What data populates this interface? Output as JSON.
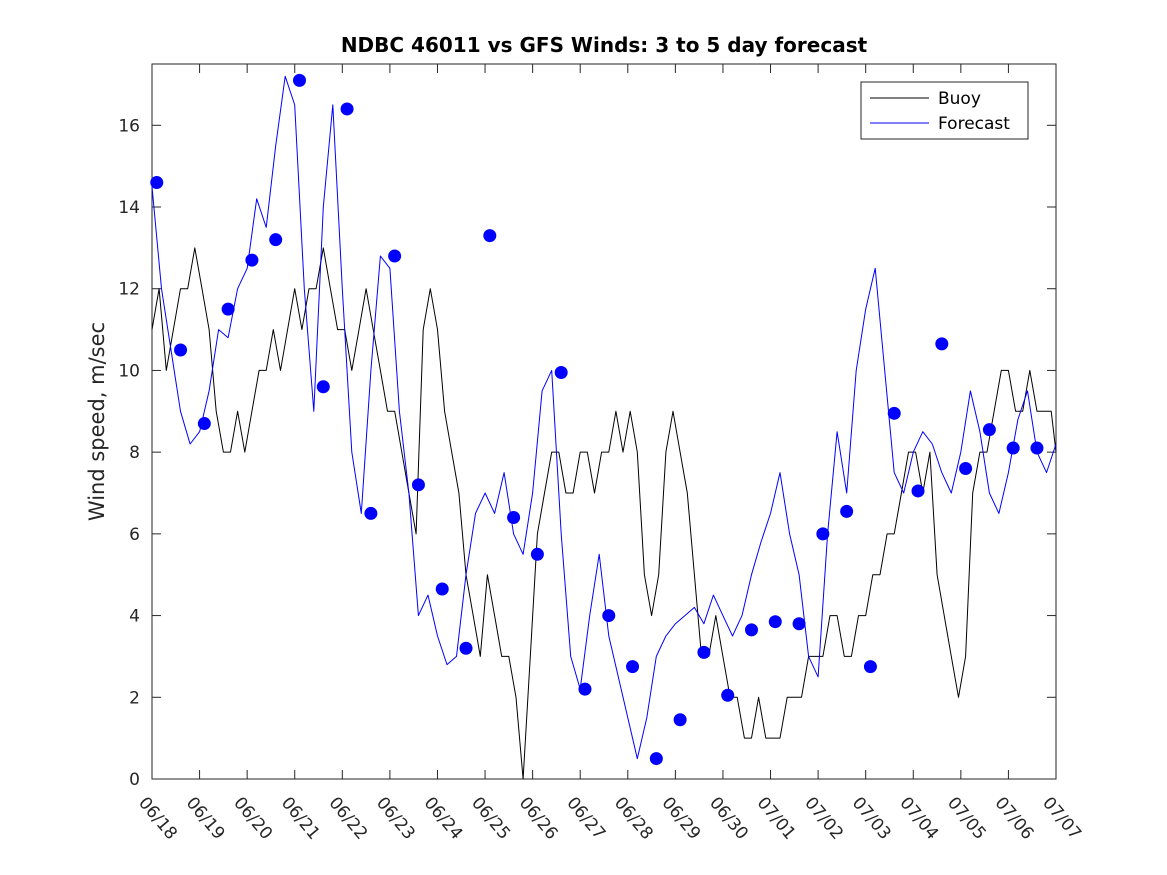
{
  "chart_data": {
    "type": "line",
    "title": "NDBC 46011 vs GFS Winds: 3 to 5 day forecast",
    "xlabel": "",
    "ylabel": "Wind speed, m/sec",
    "xlim": [
      "06/18",
      "07/07"
    ],
    "ylim": [
      0,
      17.5
    ],
    "x_tick_labels": [
      "06/18",
      "06/19",
      "06/20",
      "06/21",
      "06/22",
      "06/23",
      "06/24",
      "06/25",
      "06/26",
      "06/27",
      "06/28",
      "06/29",
      "06/30",
      "07/01",
      "07/02",
      "07/03",
      "07/04",
      "07/05",
      "07/06",
      "07/07"
    ],
    "y_ticks": [
      0,
      2,
      4,
      6,
      8,
      10,
      12,
      14,
      16
    ],
    "grid": false,
    "legend": {
      "placement": "top-right",
      "entries": [
        "Buoy",
        "Forecast"
      ]
    },
    "colors": {
      "buoy": "#000000",
      "forecast": "#0000ff",
      "markers": "#0000ff"
    },
    "series": [
      {
        "name": "Buoy",
        "color": "#000000",
        "x_days": [
          0.0,
          0.15,
          0.3,
          0.45,
          0.6,
          0.75,
          0.9,
          1.05,
          1.2,
          1.35,
          1.5,
          1.65,
          1.8,
          1.95,
          2.1,
          2.25,
          2.4,
          2.55,
          2.7,
          2.85,
          3.0,
          3.15,
          3.3,
          3.45,
          3.6,
          3.75,
          3.9,
          4.05,
          4.2,
          4.35,
          4.5,
          4.65,
          4.8,
          4.95,
          5.1,
          5.25,
          5.4,
          5.55,
          5.7,
          5.85,
          6.0,
          6.15,
          6.3,
          6.45,
          6.6,
          6.75,
          6.9,
          7.05,
          7.2,
          7.35,
          7.5,
          7.65,
          7.8,
          7.95,
          8.1,
          8.25,
          8.4,
          8.55,
          8.7,
          8.85,
          9.0,
          9.15,
          9.3,
          9.45,
          9.6,
          9.75,
          9.9,
          10.05,
          10.2,
          10.35,
          10.5,
          10.65,
          10.8,
          10.95,
          11.1,
          11.25,
          11.4,
          11.55,
          11.7,
          11.85,
          12.0,
          12.15,
          12.3,
          12.45,
          12.6,
          12.75,
          12.9,
          13.05,
          13.2,
          13.35,
          13.5,
          13.65,
          13.8,
          13.95,
          14.1,
          14.25,
          14.4,
          14.55,
          14.7,
          14.85,
          15.0,
          15.15,
          15.3,
          15.45,
          15.6,
          15.75,
          15.9,
          16.05,
          16.2,
          16.35,
          16.5,
          16.65,
          16.8,
          16.95,
          17.1,
          17.25,
          17.4,
          17.55,
          17.7,
          17.85,
          18.0,
          18.15,
          18.3,
          18.45,
          18.6,
          18.75,
          18.9,
          19.0
        ],
        "y": [
          11,
          12,
          10,
          11,
          12,
          12,
          13,
          12,
          11,
          9,
          8,
          8,
          9,
          8,
          9,
          10,
          10,
          11,
          10,
          11,
          12,
          11,
          12,
          12,
          13,
          12,
          11,
          11,
          10,
          11,
          12,
          11,
          10,
          9,
          9,
          8,
          7,
          6,
          11,
          12,
          11,
          9,
          8,
          7,
          5,
          4,
          3,
          5,
          4,
          3,
          3,
          2,
          0,
          3,
          6,
          7,
          8,
          8,
          7,
          7,
          8,
          8,
          7,
          8,
          8,
          9,
          8,
          9,
          8,
          5,
          4,
          5,
          8,
          9,
          8,
          7,
          5,
          3,
          3,
          4,
          3,
          2,
          2,
          1,
          1,
          2,
          1,
          1,
          1,
          2,
          2,
          2,
          3,
          3,
          3,
          4,
          4,
          3,
          3,
          4,
          4,
          5,
          5,
          6,
          6,
          7,
          8,
          8,
          7,
          8,
          5,
          4,
          3,
          2,
          3,
          7,
          8,
          8,
          9,
          10,
          10,
          9,
          9,
          10,
          9,
          9,
          9,
          8
        ]
      },
      {
        "name": "Forecast",
        "color": "#0000ff",
        "x_days": [
          0.0,
          0.2,
          0.4,
          0.6,
          0.8,
          1.0,
          1.2,
          1.4,
          1.6,
          1.8,
          2.0,
          2.2,
          2.4,
          2.6,
          2.8,
          3.0,
          3.2,
          3.4,
          3.6,
          3.8,
          4.0,
          4.2,
          4.4,
          4.6,
          4.8,
          5.0,
          5.2,
          5.4,
          5.6,
          5.8,
          6.0,
          6.2,
          6.4,
          6.6,
          6.8,
          7.0,
          7.2,
          7.4,
          7.6,
          7.8,
          8.0,
          8.2,
          8.4,
          8.6,
          8.8,
          9.0,
          9.2,
          9.4,
          9.6,
          9.8,
          10.0,
          10.2,
          10.4,
          10.6,
          10.8,
          11.0,
          11.2,
          11.4,
          11.6,
          11.8,
          12.0,
          12.2,
          12.4,
          12.6,
          12.8,
          13.0,
          13.2,
          13.4,
          13.6,
          13.8,
          14.0,
          14.2,
          14.4,
          14.6,
          14.8,
          15.0,
          15.2,
          15.4,
          15.6,
          15.8,
          16.0,
          16.2,
          16.4,
          16.6,
          16.8,
          17.0,
          17.2,
          17.4,
          17.6,
          17.8,
          18.0,
          18.2,
          18.4,
          18.6,
          18.8,
          19.0
        ],
        "y": [
          14.5,
          12.0,
          10.5,
          9.0,
          8.2,
          8.5,
          9.5,
          11.0,
          10.8,
          12.0,
          12.5,
          14.2,
          13.5,
          15.5,
          17.2,
          16.5,
          12.0,
          9.0,
          14.0,
          16.5,
          12.0,
          8.0,
          6.5,
          10.0,
          12.8,
          12.5,
          9.0,
          7.0,
          4.0,
          4.5,
          3.5,
          2.8,
          3.0,
          5.0,
          6.5,
          7.0,
          6.5,
          7.5,
          6.0,
          5.5,
          7.0,
          9.5,
          10.0,
          6.0,
          3.0,
          2.2,
          4.0,
          5.5,
          3.5,
          2.5,
          1.5,
          0.5,
          1.5,
          3.0,
          3.5,
          3.8,
          4.0,
          4.2,
          3.8,
          4.5,
          4.0,
          3.5,
          4.0,
          5.0,
          5.8,
          6.5,
          7.5,
          6.0,
          5.0,
          3.0,
          2.5,
          6.0,
          8.5,
          7.0,
          10.0,
          11.5,
          12.5,
          10.0,
          7.5,
          7.0,
          8.0,
          8.5,
          8.2,
          7.5,
          7.0,
          8.0,
          9.5,
          8.5,
          7.0,
          6.5,
          7.5,
          8.8,
          9.5,
          8.0,
          7.5,
          8.2
        ]
      }
    ],
    "markers": {
      "name": "Forecast verification points",
      "color": "#0000ff",
      "x_days": [
        0.1,
        0.6,
        1.1,
        1.6,
        2.1,
        2.6,
        3.1,
        3.6,
        4.1,
        4.6,
        5.1,
        5.6,
        6.1,
        6.6,
        7.1,
        7.6,
        8.1,
        8.6,
        9.1,
        9.6,
        10.1,
        10.6,
        11.1,
        11.6,
        12.1,
        12.6,
        13.1,
        13.6,
        14.1,
        14.6,
        15.1,
        15.6,
        16.1,
        16.6,
        17.1,
        17.6,
        18.1,
        18.6
      ],
      "y": [
        14.6,
        10.5,
        8.7,
        11.5,
        12.7,
        13.2,
        17.1,
        9.6,
        16.4,
        6.5,
        12.8,
        7.2,
        4.65,
        3.2,
        13.3,
        6.4,
        5.5,
        9.95,
        2.2,
        4.0,
        2.75,
        0.5,
        1.45,
        3.1,
        2.05,
        3.65,
        3.85,
        3.8,
        6.0,
        6.55,
        2.75,
        8.95,
        7.05,
        10.65,
        7.6,
        8.55,
        8.1,
        8.1
      ]
    }
  }
}
